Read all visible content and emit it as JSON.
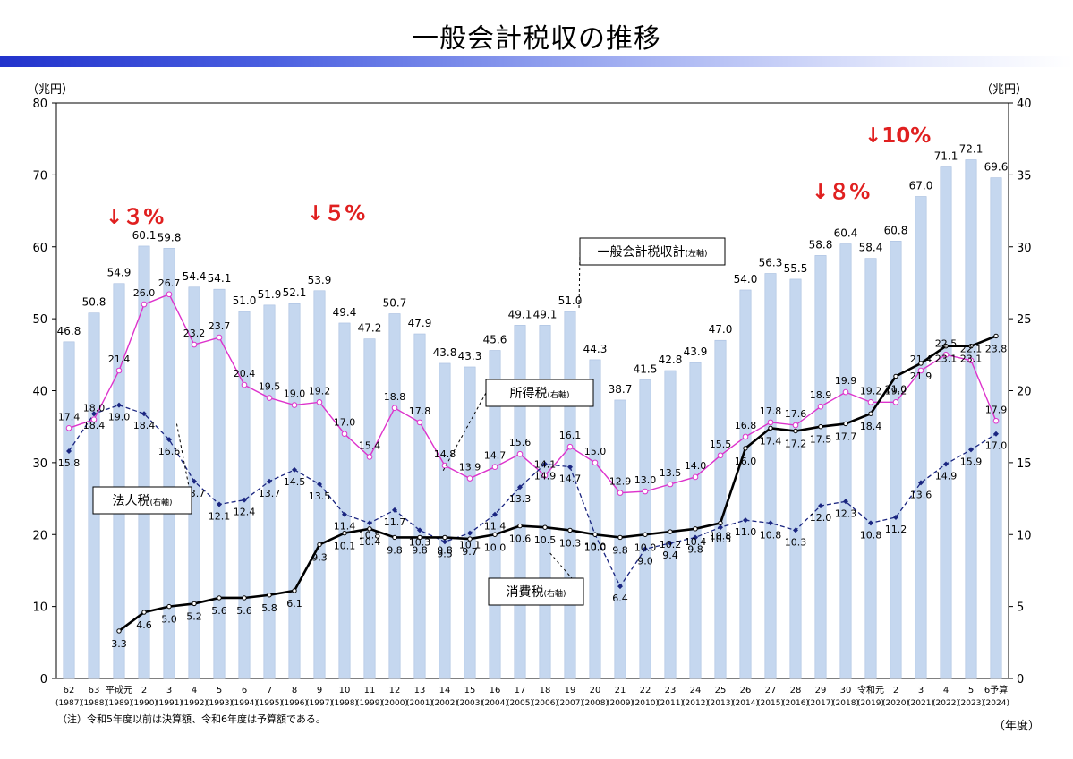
{
  "page": {
    "title": "一般会計税収の推移"
  },
  "chart_data": {
    "type": "bar",
    "title": "一般会計税収の推移",
    "left_axis_label": "（兆円）",
    "right_axis_label": "（兆円）",
    "x_axis_label": "（年度）",
    "note": "（注）令和5年度以前は決算額、令和6年度は予算額である。",
    "ylim_left": [
      0,
      80
    ],
    "ylim_right": [
      0,
      40
    ],
    "left_ticks": [
      "0",
      "10",
      "20",
      "30",
      "40",
      "50",
      "60",
      "70",
      "80"
    ],
    "right_ticks": [
      "0",
      "5",
      "10",
      "15",
      "20",
      "25",
      "30",
      "35",
      "40"
    ],
    "categories": [
      "62",
      "63",
      "平成元",
      "2",
      "3",
      "4",
      "5",
      "6",
      "7",
      "8",
      "9",
      "10",
      "11",
      "12",
      "13",
      "14",
      "15",
      "16",
      "17",
      "18",
      "19",
      "20",
      "21",
      "22",
      "23",
      "24",
      "25",
      "26",
      "27",
      "28",
      "29",
      "30",
      "令和元",
      "2",
      "3",
      "4",
      "5",
      "6予算"
    ],
    "years": [
      "(1987)",
      "(1988)",
      "(1989)",
      "(1990)",
      "(1991)",
      "(1992)",
      "(1993)",
      "(1994)",
      "(1995)",
      "(1996)",
      "(1997)",
      "(1998)",
      "(1999)",
      "(2000)",
      "(2001)",
      "(2002)",
      "(2003)",
      "(2004)",
      "(2005)",
      "(2006)",
      "(2007)",
      "(2008)",
      "(2009)",
      "(2010)",
      "(2011)",
      "(2012)",
      "(2013)",
      "(2014)",
      "(2015)",
      "(2016)",
      "(2017)",
      "(2018)",
      "(2019)",
      "(2020)",
      "(2021)",
      "(2022)",
      "(2023)",
      "(2024)"
    ],
    "series": [
      {
        "name": "一般会計税収計",
        "axis": "左軸",
        "type": "bar",
        "color": "#c5d7ef",
        "values": [
          46.8,
          50.8,
          54.9,
          60.1,
          59.8,
          54.4,
          54.1,
          51.0,
          51.9,
          52.1,
          53.9,
          49.4,
          47.2,
          50.7,
          47.9,
          43.8,
          43.3,
          45.6,
          49.1,
          49.1,
          51.0,
          44.3,
          38.7,
          41.5,
          42.8,
          43.9,
          47.0,
          54.0,
          56.3,
          55.5,
          58.8,
          60.4,
          58.4,
          60.8,
          67.0,
          71.1,
          72.1,
          69.6
        ],
        "labels": [
          "46.8",
          "50.8",
          "54.9",
          "60.1",
          "59.8",
          "54.4",
          "54.1",
          "51.0",
          "51.9",
          "52.1",
          "53.9",
          "49.4",
          "47.2",
          "50.7",
          "47.9",
          "43.8",
          "43.3",
          "45.6",
          "49.1",
          "49.1",
          "51.0",
          "44.3",
          "38.7",
          "41.5",
          "42.8",
          "43.9",
          "47.0",
          "54.0",
          "56.3",
          "55.5",
          "58.8",
          "60.4",
          "58.4",
          "60.8",
          "67.0",
          "71.1",
          "72.1",
          "69.6"
        ]
      },
      {
        "name": "所得税",
        "axis": "右軸",
        "type": "line",
        "color": "#dd33cc",
        "values": [
          17.4,
          18.0,
          21.4,
          26.0,
          26.7,
          23.2,
          23.7,
          20.4,
          19.5,
          19.0,
          19.2,
          17.0,
          15.4,
          18.8,
          17.8,
          14.8,
          13.9,
          14.7,
          15.6,
          14.1,
          16.1,
          15.0,
          12.9,
          13.0,
          13.5,
          14.0,
          15.5,
          16.8,
          17.8,
          17.6,
          18.9,
          19.9,
          19.2,
          19.2,
          21.4,
          22.5,
          22.1,
          17.9
        ],
        "labels": [
          "17.4",
          "18.0",
          "21.4",
          "26.0",
          "26.7",
          "23.2",
          "23.7",
          "20.4",
          "19.5",
          "19.0",
          "19.2",
          "17.0",
          "15.4",
          "18.8",
          "17.8",
          "14.8",
          "13.9",
          "14.7",
          "15.6",
          "14.1",
          "16.1",
          "15.0",
          "12.9",
          "13.0",
          "13.5",
          "14.0",
          "15.5",
          "16.8",
          "17.8",
          "17.6",
          "18.9",
          "19.9",
          "19.2",
          "19.2",
          "21.4",
          "22.5",
          "22.1",
          "17.9"
        ]
      },
      {
        "name": "法人税",
        "axis": "右軸",
        "type": "line",
        "color": "#1a2580",
        "values": [
          15.8,
          18.4,
          19.0,
          18.4,
          16.6,
          13.7,
          12.1,
          12.4,
          13.7,
          14.5,
          13.5,
          11.4,
          10.8,
          11.7,
          10.3,
          9.5,
          10.1,
          11.4,
          13.3,
          14.9,
          14.7,
          10.0,
          6.4,
          9.0,
          9.4,
          9.8,
          10.5,
          11.0,
          10.8,
          10.3,
          12.0,
          12.3,
          10.8,
          11.2,
          13.6,
          14.9,
          15.9,
          17.0
        ],
        "labels": [
          "15.8",
          "18.4",
          "19.0",
          "18.4",
          "16.6",
          "13.7",
          "12.1",
          "12.4",
          "13.7",
          "14.5",
          "13.5",
          "11.4",
          "10.8",
          "11.7",
          "10.3",
          "9.5",
          "10.1",
          "11.4",
          "13.3",
          "14.9",
          "14.7",
          "10.0",
          "6.4",
          "9.0",
          "9.4",
          "9.8",
          "10.5",
          "11.0",
          "10.8",
          "10.3",
          "12.0",
          "12.3",
          "10.8",
          "11.2",
          "13.6",
          "14.9",
          "15.9",
          "17.0"
        ]
      },
      {
        "name": "消費税",
        "axis": "右軸",
        "type": "line",
        "color": "#000000",
        "values": [
          null,
          null,
          3.3,
          4.6,
          5.0,
          5.2,
          5.6,
          5.6,
          5.8,
          6.1,
          9.3,
          10.1,
          10.4,
          9.8,
          9.8,
          9.8,
          9.7,
          10.0,
          10.6,
          10.5,
          10.3,
          10.0,
          9.8,
          10.0,
          10.2,
          10.4,
          10.8,
          16.0,
          17.4,
          17.2,
          17.5,
          17.7,
          18.4,
          21.0,
          21.9,
          23.1,
          23.1,
          23.8
        ],
        "labels": [
          null,
          null,
          "3.3",
          "4.6",
          "5.0",
          "5.2",
          "5.6",
          "5.6",
          "5.8",
          "6.1",
          "9.3",
          "10.1",
          "10.4",
          "9.8",
          "9.8",
          "9.8",
          "9.7",
          "10.0",
          "10.6",
          "10.5",
          "10.3",
          "10.0",
          "9.8",
          "10.0",
          "10.2",
          "10.4",
          "10.8",
          "16.0",
          "17.4",
          "17.2",
          "17.5",
          "17.7",
          "18.4",
          "21.0",
          "21.9",
          "23.1",
          "23.1",
          "23.8"
        ]
      }
    ],
    "callouts": [
      {
        "text": "一般会計税収計",
        "suffix": "(左軸)"
      },
      {
        "text": "所得税",
        "suffix": "(右軸)"
      },
      {
        "text": "法人税",
        "suffix": "(右軸)"
      },
      {
        "text": "消費税",
        "suffix": "(右軸)"
      }
    ],
    "annotations": [
      {
        "text": "↓３%",
        "color": "#e02020"
      },
      {
        "text": "↓５%",
        "color": "#e02020"
      },
      {
        "text": "↓８%",
        "color": "#e02020"
      },
      {
        "text": "↓10%",
        "color": "#e02020"
      }
    ],
    "grid": false
  }
}
